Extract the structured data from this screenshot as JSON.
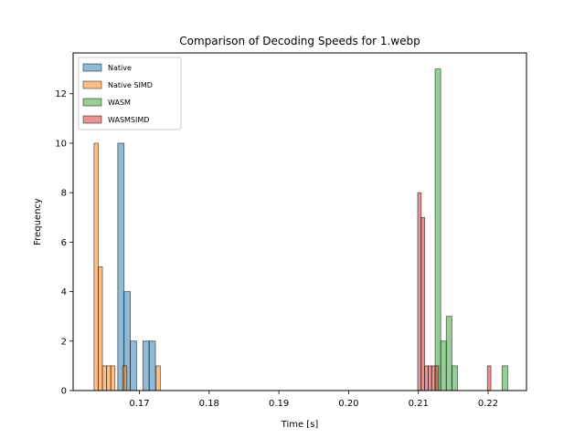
{
  "chart_data": {
    "type": "histogram",
    "title": "Comparison of Decoding Speeds for 1.webp",
    "xlabel": "Time [s]",
    "ylabel": "Frequency",
    "xlim": [
      0.1605,
      0.2255
    ],
    "ylim": [
      0,
      13.65
    ],
    "xticks": [
      0.17,
      0.18,
      0.19,
      0.2,
      0.21,
      0.22
    ],
    "xtick_labels": [
      "0.17",
      "0.18",
      "0.19",
      "0.20",
      "0.21",
      "0.22"
    ],
    "yticks": [
      0,
      2,
      4,
      6,
      8,
      10,
      12
    ],
    "ytick_labels": [
      "0",
      "2",
      "4",
      "6",
      "8",
      "10",
      "12"
    ],
    "legend_position": "top-left",
    "grid": false,
    "series": [
      {
        "name": "Native",
        "color": "#1f77b4",
        "bins": [
          {
            "x0": 0.1669,
            "x1": 0.1678,
            "count": 10
          },
          {
            "x0": 0.1678,
            "x1": 0.1687,
            "count": 4
          },
          {
            "x0": 0.1687,
            "x1": 0.1696,
            "count": 2
          },
          {
            "x0": 0.1705,
            "x1": 0.1714,
            "count": 2
          },
          {
            "x0": 0.1714,
            "x1": 0.1723,
            "count": 2
          }
        ]
      },
      {
        "name": "Native SIMD",
        "color": "#ff7f0e",
        "bins": [
          {
            "x0": 0.1635,
            "x1": 0.1641,
            "count": 10
          },
          {
            "x0": 0.1641,
            "x1": 0.1647,
            "count": 5
          },
          {
            "x0": 0.1647,
            "x1": 0.1653,
            "count": 1
          },
          {
            "x0": 0.1653,
            "x1": 0.1659,
            "count": 1
          },
          {
            "x0": 0.1659,
            "x1": 0.1665,
            "count": 1
          },
          {
            "x0": 0.1676,
            "x1": 0.1682,
            "count": 1
          },
          {
            "x0": 0.1724,
            "x1": 0.173,
            "count": 1
          }
        ]
      },
      {
        "name": "WASM",
        "color": "#2ca02c",
        "bins": [
          {
            "x0": 0.2124,
            "x1": 0.2132,
            "count": 13
          },
          {
            "x0": 0.2132,
            "x1": 0.214,
            "count": 2
          },
          {
            "x0": 0.214,
            "x1": 0.2148,
            "count": 3
          },
          {
            "x0": 0.2148,
            "x1": 0.2156,
            "count": 1
          },
          {
            "x0": 0.222,
            "x1": 0.2228,
            "count": 1
          }
        ]
      },
      {
        "name": "WASMSIMD",
        "color": "#d62728",
        "bins": [
          {
            "x0": 0.2099,
            "x1": 0.2104,
            "count": 8
          },
          {
            "x0": 0.2104,
            "x1": 0.2109,
            "count": 7
          },
          {
            "x0": 0.2109,
            "x1": 0.2114,
            "count": 1
          },
          {
            "x0": 0.2114,
            "x1": 0.2119,
            "count": 1
          },
          {
            "x0": 0.2119,
            "x1": 0.2124,
            "count": 1
          },
          {
            "x0": 0.2124,
            "x1": 0.2129,
            "count": 1
          },
          {
            "x0": 0.2199,
            "x1": 0.2204,
            "count": 1
          }
        ]
      }
    ]
  }
}
